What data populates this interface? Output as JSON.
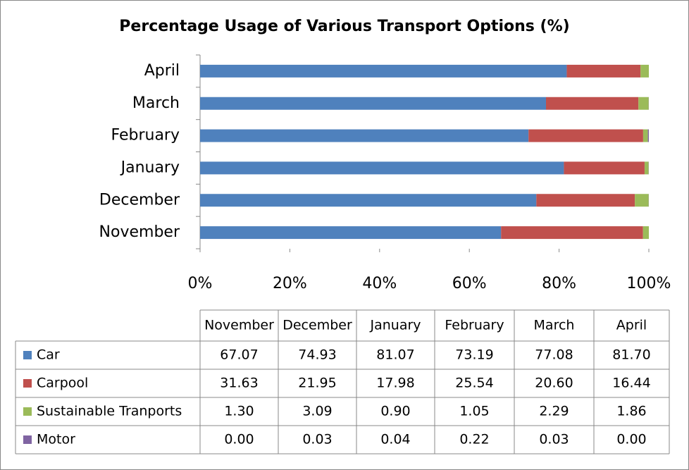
{
  "chart_data": {
    "type": "stacked-bar-horizontal",
    "title": "Percentage Usage of  Various Transport Options (%)",
    "categories": [
      "November",
      "December",
      "January",
      "February",
      "March",
      "April"
    ],
    "series": [
      {
        "name": "Car",
        "color": "#4f81bd",
        "values": [
          67.07,
          74.93,
          81.07,
          73.19,
          77.08,
          81.7
        ],
        "value_labels": [
          "67.07",
          "74.93",
          "81.07",
          "73.19",
          "77.08",
          "81.70"
        ]
      },
      {
        "name": "Carpool",
        "color": "#c0504d",
        "values": [
          31.63,
          21.95,
          17.98,
          25.54,
          20.6,
          16.44
        ],
        "value_labels": [
          "31.63",
          "21.95",
          "17.98",
          "25.54",
          "20.60",
          "16.44"
        ]
      },
      {
        "name": "Sustainable Tranports",
        "color": "#9bbb59",
        "values": [
          1.3,
          3.09,
          0.9,
          1.05,
          2.29,
          1.86
        ],
        "value_labels": [
          "1.30",
          "3.09",
          "0.90",
          "1.05",
          "2.29",
          "1.86"
        ]
      },
      {
        "name": "Motor",
        "color": "#8064a2",
        "values": [
          0,
          0.03,
          0.04,
          0.22,
          0.03,
          0
        ],
        "value_labels": [
          "0.00",
          "0.03",
          "0.04",
          "0.22",
          "0.03",
          "0.00"
        ]
      }
    ],
    "xlim": [
      0,
      100
    ],
    "xticks": [
      {
        "value": 0,
        "label": "0%"
      },
      {
        "value": 20,
        "label": "20%"
      },
      {
        "value": 40,
        "label": "40%"
      },
      {
        "value": 60,
        "label": "60%"
      },
      {
        "value": 80,
        "label": "80%"
      },
      {
        "value": 100,
        "label": "100%"
      }
    ],
    "data_table": true
  }
}
